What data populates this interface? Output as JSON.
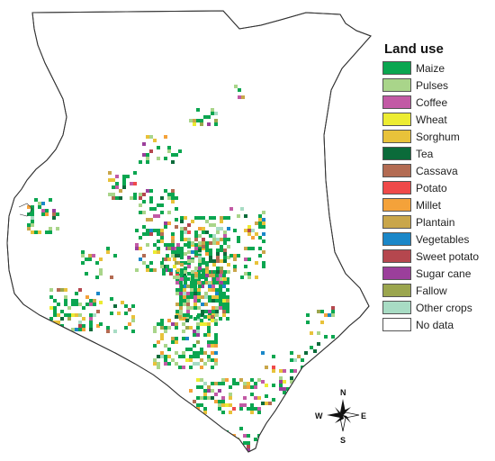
{
  "legend": {
    "title": "Land use",
    "items": [
      {
        "label": "Maize",
        "color": "#0aa650"
      },
      {
        "label": "Pulses",
        "color": "#a9d58a"
      },
      {
        "label": "Coffee",
        "color": "#c25aa5"
      },
      {
        "label": "Wheat",
        "color": "#ecec32"
      },
      {
        "label": "Sorghum",
        "color": "#e8c23a"
      },
      {
        "label": "Tea",
        "color": "#0b6b3a"
      },
      {
        "label": "Cassava",
        "color": "#b36b52"
      },
      {
        "label": "Potato",
        "color": "#ef4a4a"
      },
      {
        "label": "Millet",
        "color": "#f4a23a"
      },
      {
        "label": "Plantain",
        "color": "#c9a64a"
      },
      {
        "label": "Vegetables",
        "color": "#1a87c8"
      },
      {
        "label": "Sweet potato",
        "color": "#b5474e"
      },
      {
        "label": "Sugar cane",
        "color": "#9b3f9b"
      },
      {
        "label": "Fallow",
        "color": "#9ba64e"
      },
      {
        "label": "Other crops",
        "color": "#a8dcc4"
      },
      {
        "label": "No data",
        "color": "#ffffff"
      }
    ]
  },
  "compass": {
    "n": "N",
    "s": "S",
    "e": "E",
    "w": "W"
  }
}
